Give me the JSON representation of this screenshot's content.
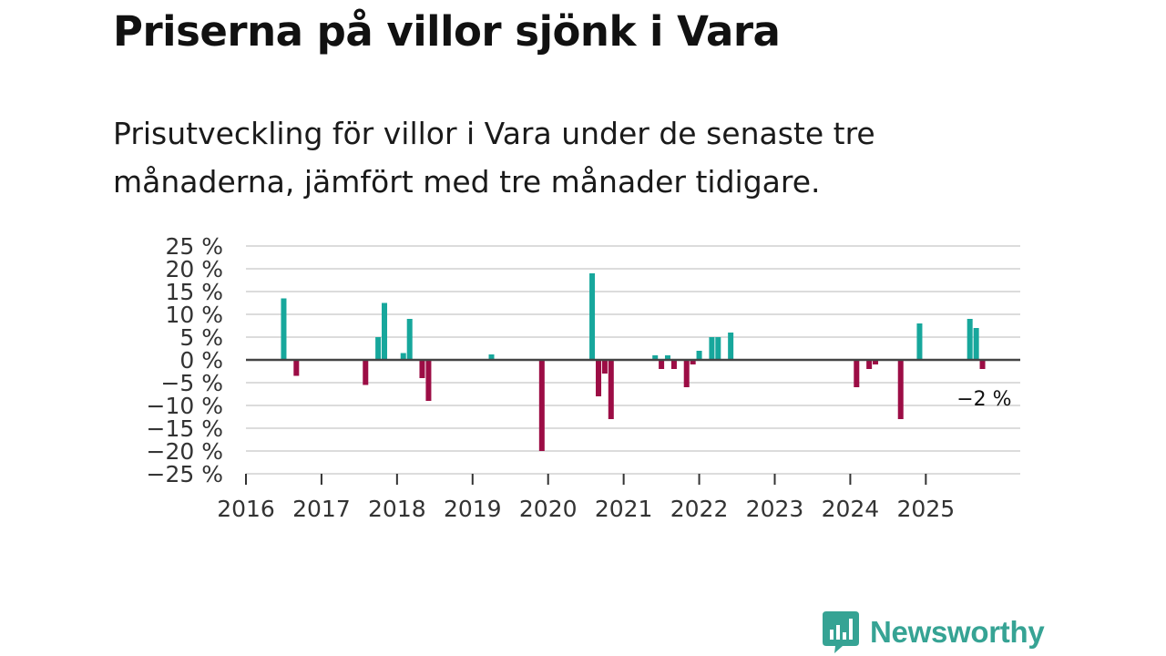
{
  "title": "Priserna på villor sjönk i Vara",
  "subtitle": "Prisutveckling för villor i Vara under de senaste tre månaderna, jämfört med tre månader tidigare.",
  "brand": {
    "name": "Newsworthy",
    "color": "#36a394"
  },
  "colors": {
    "positive": "#17a79c",
    "negative": "#9c0d45",
    "grid": "#dcdcdc",
    "zero_line": "#444444"
  },
  "chart_data": {
    "type": "bar",
    "title": "Priserna på villor sjönk i Vara",
    "xlabel": "",
    "ylabel": "",
    "ylim": [
      -25,
      25
    ],
    "xlim": [
      2016.0,
      2026.25
    ],
    "y_ticks": [
      25,
      20,
      15,
      10,
      5,
      0,
      -5,
      -10,
      -15,
      -20,
      -25
    ],
    "y_tick_labels": [
      "25 %",
      "20 %",
      "15 %",
      "10 %",
      "5 %",
      "0 %",
      "−5 %",
      "−10 %",
      "−15 %",
      "−20 %",
      "−25 %"
    ],
    "x_ticks": [
      2016,
      2017,
      2018,
      2019,
      2020,
      2021,
      2022,
      2023,
      2024,
      2025
    ],
    "x_tick_labels": [
      "2016",
      "2017",
      "2018",
      "2019",
      "2020",
      "2021",
      "2022",
      "2023",
      "2024",
      "2025"
    ],
    "series": [
      {
        "name": "Prisutveckling",
        "x": [
          2016.5,
          2016.667,
          2017.583,
          2017.75,
          2017.833,
          2018.083,
          2018.167,
          2018.333,
          2018.417,
          2019.25,
          2019.917,
          2020.583,
          2020.667,
          2020.75,
          2020.833,
          2021.417,
          2021.5,
          2021.583,
          2021.667,
          2021.833,
          2021.917,
          2022.0,
          2022.167,
          2022.25,
          2022.417,
          2024.083,
          2024.25,
          2024.333,
          2024.667,
          2024.917,
          2025.583,
          2025.667,
          2025.75
        ],
        "values": [
          13.5,
          -3.5,
          -5.5,
          5,
          12.5,
          1.5,
          9,
          -4,
          -9,
          1.2,
          -20,
          19,
          -8,
          -3,
          -13,
          1,
          -2,
          1,
          -2,
          -6,
          -1,
          2,
          5,
          5,
          6,
          -6,
          -2,
          -1,
          -13,
          8,
          9,
          7,
          -2
        ]
      }
    ],
    "annotations": [
      {
        "x": 2025.75,
        "y": -2,
        "text": "−2 %"
      }
    ]
  }
}
